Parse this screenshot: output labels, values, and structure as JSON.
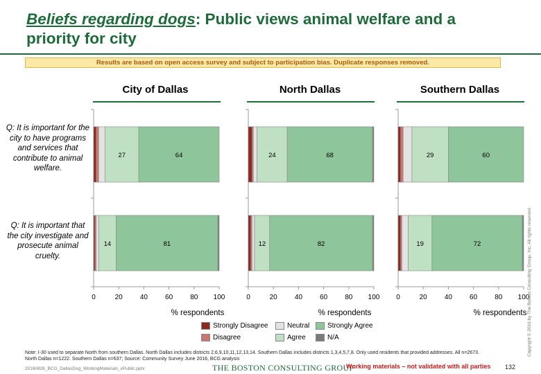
{
  "title": {
    "highlight": "Beliefs regarding dogs",
    "rest": ": Public views animal welfare and a priority for city"
  },
  "disclaimer": "Results are based on open access survey and subject to participation bias. Duplicate responses removed.",
  "questions": [
    "Q: It is important for the city to have programs and services that contribute to animal welfare.",
    "Q: It is important that the city investigate and prosecute animal cruelty."
  ],
  "colors": {
    "strongly_disagree": "#8b2a24",
    "disagree": "#c97770",
    "neutral": "#e3e3e3",
    "agree": "#bfe0c2",
    "strongly_agree": "#8ec59b",
    "na": "#7a7a7a",
    "green": "#1e6b3a"
  },
  "chart_data": {
    "type": "bar",
    "orientation": "horizontal",
    "stacked": true,
    "xlabel": "% respondents",
    "xlim": [
      0,
      100
    ],
    "xticks": [
      "0",
      "20",
      "40",
      "60",
      "80",
      "100"
    ],
    "categories": [
      "Programs and services for animal welfare",
      "Investigate and prosecute animal cruelty"
    ],
    "legend": [
      "Strongly Disagree",
      "Disagree",
      "Neutral",
      "Agree",
      "Strongly Agree",
      "N/A"
    ],
    "panels": [
      {
        "name": "City of Dallas",
        "series": [
          {
            "name": "Strongly Disagree",
            "values": [
              2,
              1
            ]
          },
          {
            "name": "Disagree",
            "values": [
              2,
              1
            ]
          },
          {
            "name": "Neutral",
            "values": [
              5,
              2
            ]
          },
          {
            "name": "Agree",
            "values": [
              27,
              14
            ]
          },
          {
            "name": "Strongly Agree",
            "values": [
              64,
              81
            ]
          },
          {
            "name": "N/A",
            "values": [
              0,
              1
            ]
          }
        ]
      },
      {
        "name": "North Dallas",
        "series": [
          {
            "name": "Strongly Disagree",
            "values": [
              3,
              2
            ]
          },
          {
            "name": "Disagree",
            "values": [
              1,
              1
            ]
          },
          {
            "name": "Neutral",
            "values": [
              3,
              2
            ]
          },
          {
            "name": "Agree",
            "values": [
              24,
              12
            ]
          },
          {
            "name": "Strongly Agree",
            "values": [
              68,
              82
            ]
          },
          {
            "name": "N/A",
            "values": [
              1,
              1
            ]
          }
        ]
      },
      {
        "name": "Southern Dallas",
        "series": [
          {
            "name": "Strongly Disagree",
            "values": [
              2,
              2
            ]
          },
          {
            "name": "Disagree",
            "values": [
              2,
              1
            ]
          },
          {
            "name": "Neutral",
            "values": [
              7,
              5
            ]
          },
          {
            "name": "Agree",
            "values": [
              29,
              19
            ]
          },
          {
            "name": "Strongly Agree",
            "values": [
              60,
              72
            ]
          },
          {
            "name": "N/A",
            "values": [
              0,
              1
            ]
          }
        ]
      }
    ]
  },
  "note": "Note: I-30 used to separate North from southern Dallas. North Dallas includes districts 2,6,9,10,11,12,13,14. Southern Dallas includes districts 1,3,4,5,7,8. Only used residents that provided addresses. All n=2673. North Dallas n=1222. Southern Dallas n=637; Source: Community Survey June 2016, BCG analysis",
  "footer": {
    "file": "20160826_BCG_DallasDog_WorkingMaterials_vPublic.pptx",
    "logo": "THE BOSTON CONSULTING GROUP",
    "warning": "Working materials – not validated with all parties",
    "page": "132",
    "copyright": "Copyright © 2016 by The Boston Consulting Group, Inc. All rights reserved."
  }
}
